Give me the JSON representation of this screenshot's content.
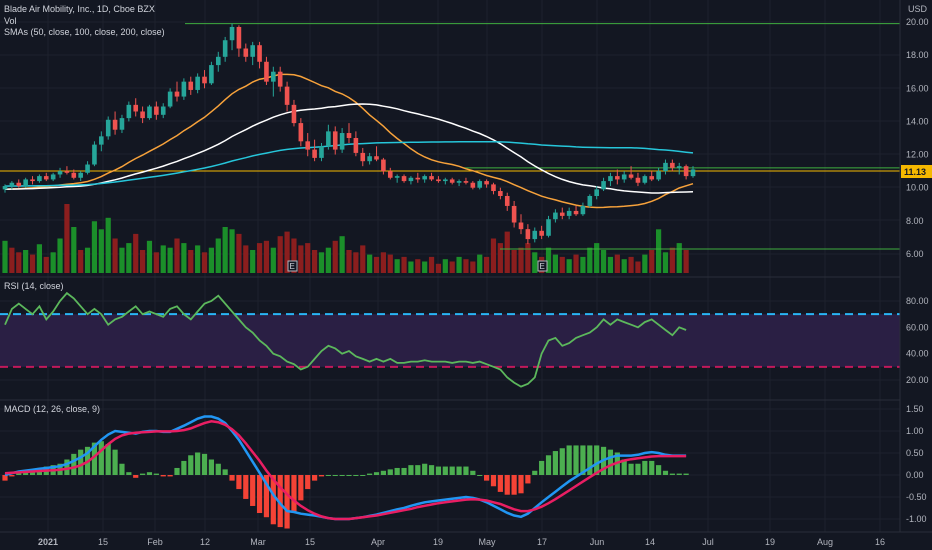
{
  "header": {
    "title": "Blade Air Mobility, Inc., 1D, Cboe BZX",
    "vol_label": "Vol",
    "sma_label": "SMAs (50, close, 100, close, 200, close)",
    "currency": "USD",
    "last_price": "11.13"
  },
  "rsi_panel": {
    "label": "RSI (14, close)"
  },
  "macd_panel": {
    "label": "MACD (12, 26, close, 9)"
  },
  "colors": {
    "background": "#131722",
    "grid": "#1e222d",
    "up": "#26a69a",
    "down": "#ef5350",
    "vol_up": "#1b8f2a",
    "vol_down": "#8b1e1e",
    "sma50": "#f7a23b",
    "sma100": "#ffffff",
    "sma200": "#26c6da",
    "hline": "#3fae3f",
    "last_price": "#f5b800",
    "rsi_line": "#5cb85c",
    "rsi_band": "#2a1f44",
    "rsi_upper": "#29b6f6",
    "rsi_lower": "#c2185b",
    "macd_line": "#2196f3",
    "signal_line": "#e91e63",
    "hist_up": "#4caf50",
    "hist_down": "#f44336"
  },
  "chart_data": [
    {
      "type": "candlestick",
      "title": "Blade Air Mobility, Inc., 1D, Cboe BZX",
      "y_ticks": [
        "20.00",
        "18.00",
        "16.00",
        "14.00",
        "12.00",
        "10.00",
        "8.00",
        "6.00"
      ],
      "ylim": [
        5,
        20.5
      ],
      "x_ticks": [
        "2021",
        "15",
        "Feb",
        "12",
        "Mar",
        "15",
        "Apr",
        "19",
        "May",
        "17",
        "Jun",
        "14",
        "Jul",
        "19",
        "Aug",
        "16"
      ],
      "horizontal_lines": [
        19.9,
        11.2,
        6.3
      ],
      "earnings_markers": [
        "E",
        "E"
      ],
      "candles": [
        [
          9.9,
          10.2,
          9.7,
          10.1
        ],
        [
          10.1,
          10.4,
          9.9,
          10.3
        ],
        [
          10.3,
          10.5,
          10.0,
          10.1
        ],
        [
          10.1,
          10.6,
          10.0,
          10.5
        ],
        [
          10.5,
          10.7,
          10.2,
          10.4
        ],
        [
          10.4,
          10.8,
          10.3,
          10.7
        ],
        [
          10.7,
          10.9,
          10.4,
          10.5
        ],
        [
          10.5,
          10.9,
          10.4,
          10.8
        ],
        [
          10.8,
          11.2,
          10.6,
          11.0
        ],
        [
          11.0,
          11.3,
          10.8,
          10.9
        ],
        [
          10.9,
          11.1,
          10.5,
          10.6
        ],
        [
          10.6,
          11.0,
          10.4,
          10.9
        ],
        [
          10.9,
          11.6,
          10.8,
          11.4
        ],
        [
          11.4,
          12.8,
          11.3,
          12.6
        ],
        [
          12.6,
          13.4,
          12.2,
          13.1
        ],
        [
          13.1,
          14.3,
          12.9,
          14.1
        ],
        [
          14.1,
          14.6,
          13.2,
          13.5
        ],
        [
          13.5,
          14.4,
          13.3,
          14.2
        ],
        [
          14.2,
          15.2,
          14.0,
          15.0
        ],
        [
          15.0,
          15.4,
          14.3,
          14.6
        ],
        [
          14.6,
          14.9,
          13.9,
          14.2
        ],
        [
          14.2,
          15.0,
          14.1,
          14.9
        ],
        [
          14.9,
          15.2,
          14.1,
          14.4
        ],
        [
          14.4,
          15.1,
          14.2,
          14.9
        ],
        [
          14.9,
          16.0,
          14.8,
          15.8
        ],
        [
          15.8,
          16.4,
          15.2,
          15.5
        ],
        [
          15.5,
          16.6,
          15.3,
          16.4
        ],
        [
          16.4,
          16.7,
          15.6,
          15.9
        ],
        [
          15.9,
          16.9,
          15.7,
          16.7
        ],
        [
          16.7,
          17.1,
          16.0,
          16.3
        ],
        [
          16.3,
          17.6,
          16.2,
          17.4
        ],
        [
          17.4,
          18.2,
          17.0,
          17.9
        ],
        [
          17.9,
          19.1,
          17.6,
          18.9
        ],
        [
          18.9,
          19.9,
          18.3,
          19.7
        ],
        [
          19.7,
          19.8,
          17.9,
          18.4
        ],
        [
          18.4,
          18.7,
          17.6,
          17.9
        ],
        [
          17.9,
          18.8,
          17.4,
          18.6
        ],
        [
          18.6,
          18.8,
          17.2,
          17.6
        ],
        [
          17.6,
          17.9,
          16.2,
          16.4
        ],
        [
          16.4,
          17.3,
          15.5,
          17.0
        ],
        [
          17.0,
          17.3,
          15.8,
          16.1
        ],
        [
          16.1,
          16.4,
          14.6,
          15.0
        ],
        [
          15.0,
          15.3,
          13.7,
          13.9
        ],
        [
          13.9,
          14.2,
          12.5,
          12.8
        ],
        [
          12.8,
          13.3,
          11.9,
          12.3
        ],
        [
          12.3,
          12.9,
          11.6,
          11.8
        ],
        [
          11.8,
          12.7,
          11.6,
          12.5
        ],
        [
          12.5,
          13.8,
          12.3,
          13.4
        ],
        [
          13.4,
          13.7,
          12.0,
          12.3
        ],
        [
          12.3,
          13.6,
          12.1,
          13.3
        ],
        [
          13.3,
          13.9,
          12.7,
          13.0
        ],
        [
          13.0,
          13.4,
          11.9,
          12.1
        ],
        [
          12.1,
          12.4,
          11.3,
          11.6
        ],
        [
          11.6,
          12.1,
          11.4,
          11.9
        ],
        [
          11.9,
          12.5,
          11.6,
          11.7
        ],
        [
          11.7,
          11.8,
          10.8,
          11.0
        ],
        [
          11.0,
          11.2,
          10.5,
          10.6
        ],
        [
          10.6,
          10.8,
          10.3,
          10.7
        ],
        [
          10.7,
          10.8,
          10.3,
          10.4
        ],
        [
          10.4,
          10.7,
          10.2,
          10.6
        ],
        [
          10.6,
          10.9,
          10.3,
          10.5
        ],
        [
          10.5,
          10.8,
          10.3,
          10.7
        ],
        [
          10.7,
          10.9,
          10.4,
          10.5
        ],
        [
          10.5,
          10.7,
          10.3,
          10.4
        ],
        [
          10.4,
          10.6,
          10.2,
          10.5
        ],
        [
          10.5,
          10.6,
          10.2,
          10.3
        ],
        [
          10.3,
          10.5,
          10.1,
          10.4
        ],
        [
          10.4,
          10.6,
          10.2,
          10.3
        ],
        [
          10.3,
          10.4,
          9.9,
          10.0
        ],
        [
          10.0,
          10.5,
          9.9,
          10.4
        ],
        [
          10.4,
          10.5,
          10.0,
          10.2
        ],
        [
          10.2,
          10.3,
          9.6,
          9.8
        ],
        [
          9.8,
          10.0,
          9.3,
          9.5
        ],
        [
          9.5,
          9.7,
          8.6,
          8.9
        ],
        [
          8.9,
          9.2,
          7.6,
          7.9
        ],
        [
          7.9,
          8.4,
          7.2,
          7.5
        ],
        [
          7.5,
          7.8,
          6.6,
          6.9
        ],
        [
          6.9,
          7.6,
          6.7,
          7.4
        ],
        [
          7.4,
          7.7,
          6.9,
          7.1
        ],
        [
          7.1,
          8.3,
          7.0,
          8.1
        ],
        [
          8.1,
          8.7,
          7.9,
          8.5
        ],
        [
          8.5,
          8.8,
          8.1,
          8.3
        ],
        [
          8.3,
          8.8,
          8.1,
          8.6
        ],
        [
          8.6,
          8.9,
          8.3,
          8.4
        ],
        [
          8.4,
          9.1,
          8.3,
          8.9
        ],
        [
          8.9,
          9.6,
          8.8,
          9.5
        ],
        [
          9.5,
          10.1,
          9.3,
          9.9
        ],
        [
          9.9,
          10.6,
          9.8,
          10.4
        ],
        [
          10.4,
          10.9,
          10.1,
          10.7
        ],
        [
          10.7,
          11.1,
          10.2,
          10.5
        ],
        [
          10.5,
          11.0,
          10.3,
          10.8
        ],
        [
          10.8,
          11.3,
          10.5,
          10.6
        ],
        [
          10.6,
          10.9,
          10.1,
          10.3
        ],
        [
          10.3,
          10.8,
          10.2,
          10.7
        ],
        [
          10.7,
          11.0,
          10.4,
          10.5
        ],
        [
          10.5,
          11.2,
          10.4,
          11.0
        ],
        [
          11.0,
          11.7,
          10.8,
          11.5
        ],
        [
          11.5,
          11.7,
          11.0,
          11.2
        ],
        [
          11.2,
          11.5,
          10.8,
          11.3
        ],
        [
          11.3,
          11.4,
          10.5,
          10.7
        ],
        [
          10.7,
          11.3,
          10.6,
          11.1
        ]
      ]
    },
    {
      "type": "bar",
      "title": "Vol",
      "values": [
        28,
        22,
        18,
        20,
        16,
        25,
        14,
        18,
        30,
        60,
        40,
        20,
        22,
        45,
        38,
        48,
        30,
        22,
        26,
        34,
        20,
        28,
        18,
        24,
        22,
        30,
        26,
        20,
        24,
        18,
        22,
        30,
        40,
        38,
        34,
        24,
        20,
        26,
        28,
        22,
        32,
        36,
        30,
        24,
        26,
        20,
        18,
        22,
        28,
        32,
        20,
        18,
        24,
        16,
        14,
        18,
        16,
        12,
        14,
        10,
        12,
        10,
        14,
        8,
        12,
        10,
        14,
        12,
        10,
        16,
        14,
        30,
        26,
        36,
        20,
        22,
        26,
        18,
        14,
        22,
        16,
        14,
        12,
        16,
        14,
        22,
        26,
        20,
        14,
        16,
        12,
        14,
        10,
        16,
        20,
        38,
        18,
        22,
        26,
        20
      ],
      "colors_up": [
        true,
        false,
        false,
        true,
        false,
        true,
        false,
        true,
        true,
        false,
        true,
        false,
        true,
        true,
        true,
        true,
        false,
        true,
        true,
        false,
        false,
        true,
        false,
        true,
        true,
        false,
        true,
        false,
        true,
        false,
        true,
        true,
        true,
        true,
        false,
        false,
        true,
        false,
        false,
        true,
        false,
        false,
        false,
        false,
        false,
        false,
        true,
        true,
        false,
        true,
        false,
        false,
        false,
        true,
        false,
        false,
        false,
        true,
        false,
        true,
        false,
        true,
        false,
        false,
        true,
        false,
        true,
        false,
        false,
        true,
        false,
        false,
        false,
        false,
        false,
        false,
        false,
        true,
        false,
        true,
        true,
        false,
        true,
        false,
        true,
        true,
        true,
        true,
        true,
        false,
        true,
        false,
        false,
        true,
        false,
        true,
        true,
        false,
        true,
        false
      ]
    },
    {
      "type": "line",
      "title": "RSI (14, close)",
      "y_ticks": [
        "80.00",
        "60.00",
        "40.00",
        "20.00"
      ],
      "ylim": [
        10,
        90
      ],
      "bands": [
        70,
        30
      ],
      "values": [
        62,
        74,
        78,
        74,
        70,
        76,
        66,
        72,
        80,
        86,
        82,
        76,
        70,
        74,
        70,
        62,
        66,
        68,
        72,
        76,
        70,
        72,
        70,
        68,
        74,
        76,
        70,
        66,
        72,
        78,
        80,
        84,
        78,
        72,
        66,
        60,
        56,
        50,
        46,
        40,
        38,
        34,
        32,
        28,
        30,
        36,
        42,
        46,
        44,
        40,
        42,
        38,
        36,
        34,
        36,
        34,
        36,
        33,
        33,
        34,
        34,
        35,
        34,
        34,
        34,
        33,
        34,
        34,
        33,
        34,
        32,
        30,
        28,
        22,
        18,
        15,
        17,
        22,
        40,
        50,
        52,
        46,
        48,
        52,
        54,
        56,
        60,
        66,
        62,
        66,
        64,
        62,
        60,
        64,
        66,
        62,
        58,
        54,
        60,
        58
      ]
    },
    {
      "type": "line",
      "title": "MACD (12, 26, close, 9)",
      "y_ticks": [
        "1.50",
        "1.00",
        "0.50",
        "0.00",
        "-0.50",
        "-1.00"
      ],
      "ylim": [
        -1.25,
        1.6
      ],
      "series": [
        {
          "name": "MACD",
          "values": [
            0.0,
            0.04,
            0.08,
            0.1,
            0.12,
            0.14,
            0.16,
            0.18,
            0.2,
            0.25,
            0.32,
            0.4,
            0.5,
            0.65,
            0.8,
            0.92,
            1.0,
            0.98,
            0.96,
            0.94,
            0.98,
            1.0,
            1.0,
            0.98,
            0.98,
            1.05,
            1.12,
            1.2,
            1.28,
            1.33,
            1.33,
            1.28,
            1.18,
            1.0,
            0.8,
            0.55,
            0.3,
            0.05,
            -0.2,
            -0.45,
            -0.65,
            -0.82,
            -0.84,
            -0.88,
            -0.9,
            -0.92,
            -0.95,
            -0.98,
            -1.0,
            -1.0,
            -1.0,
            -0.98,
            -0.96,
            -0.93,
            -0.9,
            -0.86,
            -0.82,
            -0.78,
            -0.75,
            -0.7,
            -0.66,
            -0.62,
            -0.6,
            -0.58,
            -0.56,
            -0.54,
            -0.52,
            -0.5,
            -0.52,
            -0.56,
            -0.62,
            -0.7,
            -0.78,
            -0.86,
            -0.92,
            -0.95,
            -0.88,
            -0.75,
            -0.62,
            -0.5,
            -0.38,
            -0.26,
            -0.14,
            -0.04,
            0.06,
            0.16,
            0.26,
            0.34,
            0.4,
            0.44,
            0.44,
            0.44,
            0.46,
            0.5,
            0.52,
            0.5,
            0.46,
            0.44,
            0.44,
            0.44
          ]
        },
        {
          "name": "Signal",
          "values": [
            0.04,
            0.05,
            0.06,
            0.07,
            0.08,
            0.09,
            0.1,
            0.11,
            0.12,
            0.14,
            0.17,
            0.22,
            0.3,
            0.42,
            0.56,
            0.7,
            0.82,
            0.9,
            0.94,
            0.96,
            0.97,
            0.98,
            0.99,
            0.99,
            0.99,
            1.0,
            1.02,
            1.06,
            1.12,
            1.18,
            1.22,
            1.2,
            1.14,
            1.04,
            0.9,
            0.72,
            0.52,
            0.32,
            0.1,
            -0.1,
            -0.28,
            -0.44,
            -0.58,
            -0.7,
            -0.8,
            -0.88,
            -0.94,
            -0.98,
            -1.0,
            -1.0,
            -1.0,
            -0.98,
            -0.96,
            -0.94,
            -0.92,
            -0.89,
            -0.86,
            -0.83,
            -0.8,
            -0.77,
            -0.73,
            -0.7,
            -0.67,
            -0.64,
            -0.62,
            -0.6,
            -0.58,
            -0.56,
            -0.55,
            -0.56,
            -0.58,
            -0.62,
            -0.66,
            -0.72,
            -0.78,
            -0.82,
            -0.82,
            -0.78,
            -0.72,
            -0.64,
            -0.55,
            -0.45,
            -0.35,
            -0.25,
            -0.15,
            -0.05,
            0.05,
            0.14,
            0.22,
            0.28,
            0.33,
            0.36,
            0.38,
            0.4,
            0.42,
            0.43,
            0.43,
            0.43,
            0.43,
            0.43
          ]
        }
      ],
      "histogram": "MACD - Signal"
    }
  ]
}
